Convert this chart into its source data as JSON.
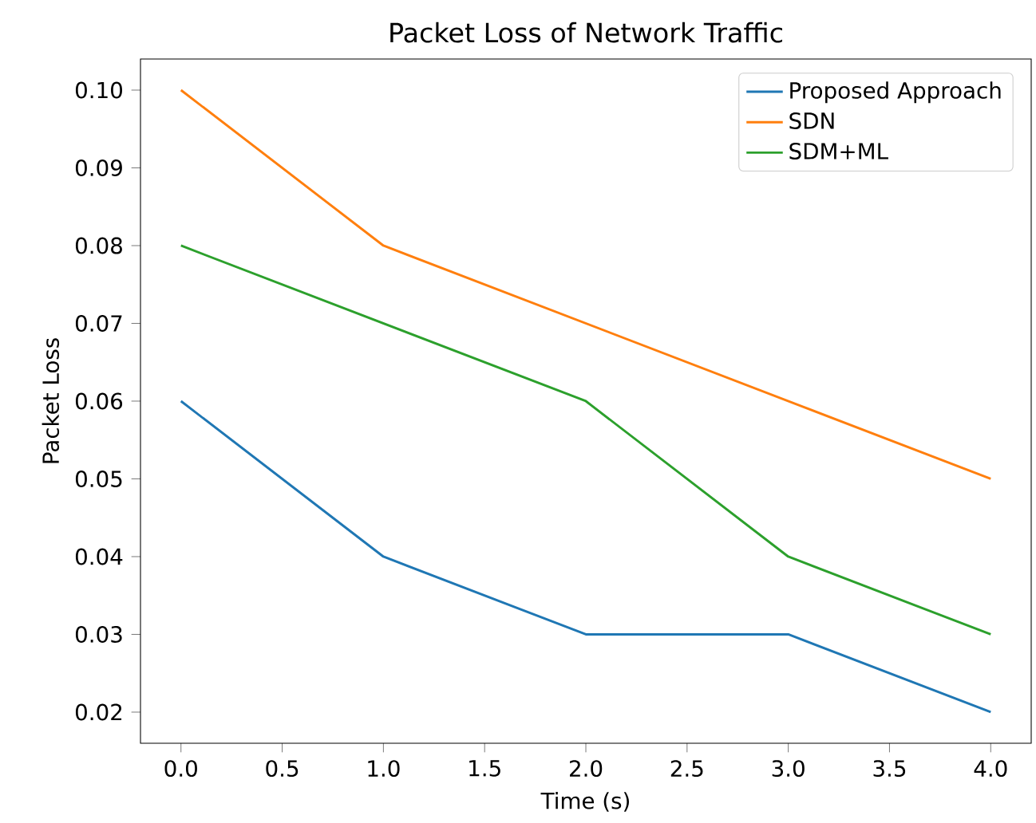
{
  "chart_data": {
    "type": "line",
    "title": "Packet Loss of Network Traffic",
    "xlabel": "Time (s)",
    "ylabel": "Packet Loss",
    "x": [
      0,
      1,
      2,
      3,
      4
    ],
    "series": [
      {
        "name": "Proposed Approach",
        "color": "#1f77b4",
        "values": [
          0.06,
          0.04,
          0.03,
          0.03,
          0.02
        ]
      },
      {
        "name": "SDN",
        "color": "#ff7f0e",
        "values": [
          0.1,
          0.08,
          0.07,
          0.06,
          0.05
        ]
      },
      {
        "name": "SDM+ML",
        "color": "#2ca02c",
        "values": [
          0.08,
          0.07,
          0.06,
          0.04,
          0.03
        ]
      }
    ],
    "xlim": [
      -0.2,
      4.2
    ],
    "ylim": [
      0.016,
      0.104
    ],
    "xticks": [
      {
        "value": 0,
        "label": "0.0"
      },
      {
        "value": 0.5,
        "label": "0.5"
      },
      {
        "value": 1,
        "label": "1.0"
      },
      {
        "value": 1.5,
        "label": "1.5"
      },
      {
        "value": 2,
        "label": "2.0"
      },
      {
        "value": 2.5,
        "label": "2.5"
      },
      {
        "value": 3,
        "label": "3.0"
      },
      {
        "value": 3.5,
        "label": "3.5"
      },
      {
        "value": 4,
        "label": "4.0"
      }
    ],
    "yticks": [
      {
        "value": 0.02,
        "label": "0.02"
      },
      {
        "value": 0.03,
        "label": "0.03"
      },
      {
        "value": 0.04,
        "label": "0.04"
      },
      {
        "value": 0.05,
        "label": "0.05"
      },
      {
        "value": 0.06,
        "label": "0.06"
      },
      {
        "value": 0.07,
        "label": "0.07"
      },
      {
        "value": 0.08,
        "label": "0.08"
      },
      {
        "value": 0.09,
        "label": "0.09"
      },
      {
        "value": 0.1,
        "label": "0.10"
      }
    ],
    "grid": false,
    "legend": "top right",
    "marker": "none",
    "line_style": "solid"
  }
}
